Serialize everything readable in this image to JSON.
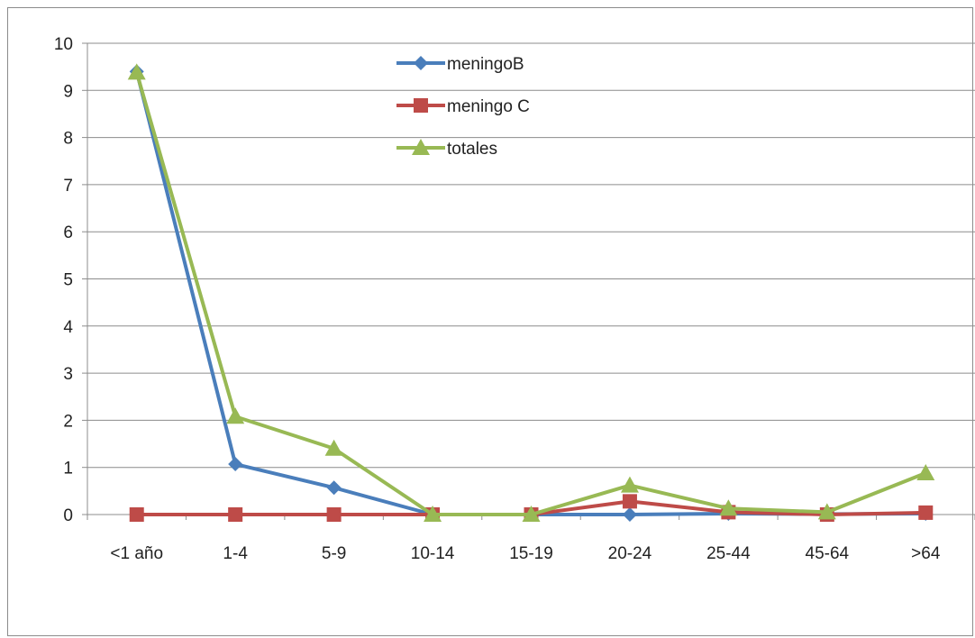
{
  "chart_data": {
    "type": "line",
    "categories": [
      "<1 año",
      "1-4",
      "5-9",
      "10-14",
      "15-19",
      "20-24",
      "25-44",
      "45-64",
      ">64"
    ],
    "series": [
      {
        "name": "meningoB",
        "color": "#4a7ebb",
        "marker": "diamond",
        "values": [
          9.4,
          1.07,
          0.57,
          0,
          0,
          0,
          0.02,
          0.01,
          0.02
        ]
      },
      {
        "name": "meningo C",
        "color": "#be4b48",
        "marker": "square",
        "values": [
          0,
          0,
          0,
          0,
          0,
          0.28,
          0.05,
          0,
          0.04
        ]
      },
      {
        "name": "totales",
        "color": "#98b954",
        "marker": "triangle",
        "values": [
          9.38,
          2.08,
          1.4,
          0,
          0,
          0.62,
          0.13,
          0.05,
          0.88
        ]
      }
    ],
    "ylim": [
      0,
      10
    ],
    "yticks": [
      0,
      1,
      2,
      3,
      4,
      5,
      6,
      7,
      8,
      9,
      10
    ],
    "grid": true,
    "legend": "top-center"
  }
}
